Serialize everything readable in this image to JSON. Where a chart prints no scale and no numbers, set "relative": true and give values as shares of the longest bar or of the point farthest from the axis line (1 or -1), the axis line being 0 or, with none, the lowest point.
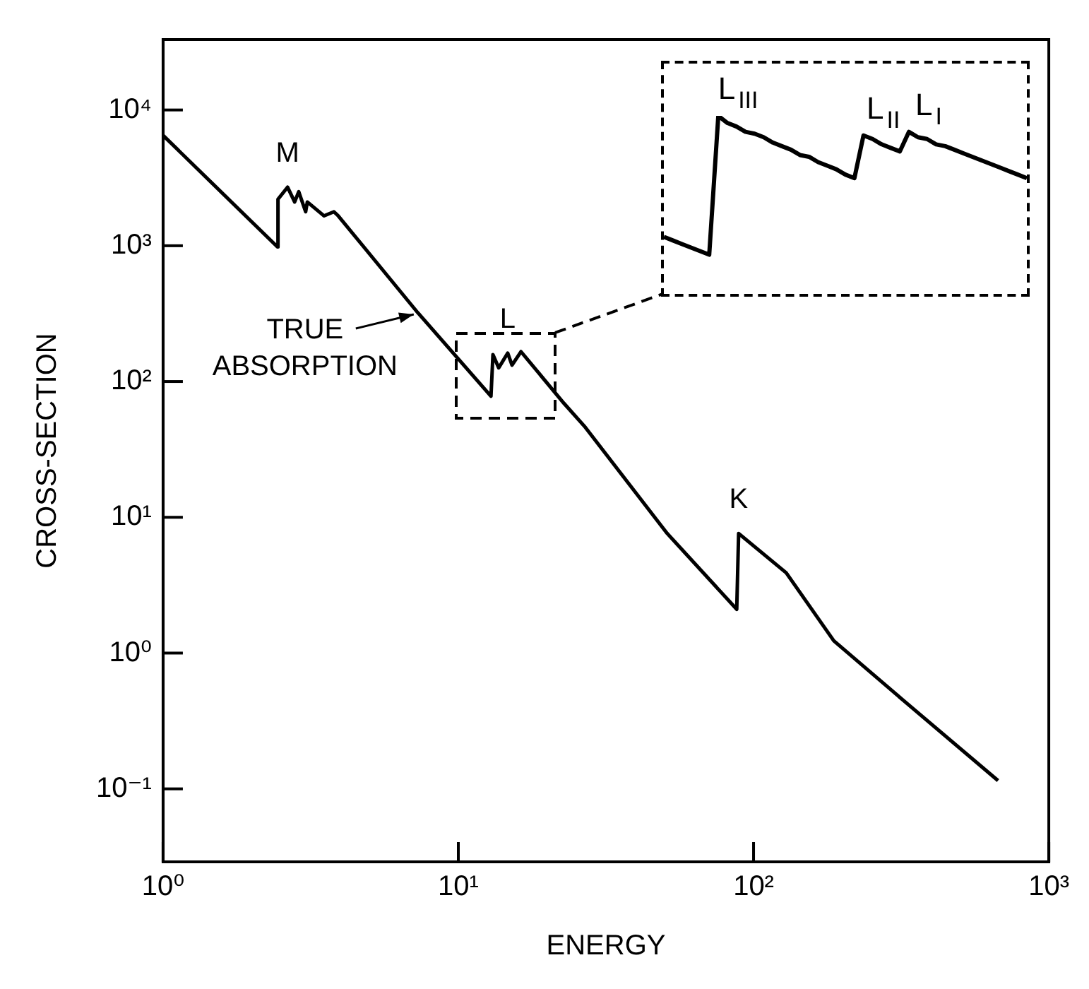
{
  "chart_data": [
    {
      "type": "line",
      "xlabel": "ENERGY",
      "ylabel": "CROSS-SECTION",
      "color": "#000000",
      "marker": "none",
      "log": "xy",
      "x": [
        1,
        2.44,
        2.45,
        2.64,
        2.79,
        2.88,
        3.04,
        3.08,
        3.51,
        3.79,
        3.92,
        7.3,
        12.9,
        13.1,
        13.7,
        14.7,
        15.2,
        16.3,
        22.8,
        26.7,
        51,
        87.7,
        89,
        129,
        187,
        321,
        673
      ],
      "values": [
        6500,
        980,
        2200,
        2700,
        2100,
        2500,
        1780,
        2100,
        1660,
        1780,
        1660,
        320,
        78,
        158,
        126,
        162,
        132,
        166,
        69,
        47,
        7.6,
        2.1,
        7.6,
        3.9,
        1.23,
        0.45,
        0.115
      ],
      "xlim": [
        1,
        1000
      ],
      "ylim": [
        0.029,
        33000
      ],
      "xticks": [
        {
          "value": 1,
          "label": "10⁰"
        },
        {
          "value": 10,
          "label": "10¹"
        },
        {
          "value": 100,
          "label": "10²"
        },
        {
          "value": 1000,
          "label": "10³"
        }
      ],
      "yticks": [
        {
          "value": 0.1,
          "label": "10⁻¹"
        },
        {
          "value": 1,
          "label": "10⁰"
        },
        {
          "value": 10,
          "label": "10¹"
        },
        {
          "value": 100,
          "label": "10²"
        },
        {
          "value": 1000,
          "label": "10³"
        },
        {
          "value": 10000,
          "label": "10⁴"
        }
      ],
      "annotations": [
        {
          "text": "M",
          "x": 2.64,
          "y": 2700
        },
        {
          "text": "TRUE ABSORPTION",
          "x": 7.3,
          "y": 320
        },
        {
          "text": "L",
          "x": 14.7,
          "y": 162
        },
        {
          "text": "K",
          "x": 89,
          "y": 7.6
        }
      ]
    },
    {
      "type": "line",
      "color": "#000000",
      "marker": "none",
      "relative": true,
      "categories": [
        null,
        null,
        null,
        null,
        null,
        null,
        null,
        null,
        null,
        null,
        null,
        null,
        null,
        null,
        null,
        null,
        null,
        null,
        null,
        null,
        null,
        null,
        null,
        null,
        null,
        null,
        null,
        null,
        null,
        null,
        null,
        null,
        null,
        null,
        null,
        null,
        null,
        null,
        null,
        null,
        null
      ],
      "values": [
        0.32,
        0.3,
        0.28,
        0.26,
        0.24,
        0.22,
        1,
        0.96,
        0.94,
        0.91,
        0.9,
        0.88,
        0.85,
        0.83,
        0.81,
        0.78,
        0.77,
        0.74,
        0.72,
        0.7,
        0.67,
        0.65,
        0.89,
        0.87,
        0.84,
        0.82,
        0.8,
        0.91,
        0.88,
        0.87,
        0.84,
        0.83,
        0.81,
        0.79,
        0.77,
        0.75,
        0.73,
        0.71,
        0.69,
        0.67,
        0.65
      ],
      "annotations": [
        "L$_{III}$",
        "L$_{II}$",
        "L$_{I}$"
      ]
    }
  ]
}
